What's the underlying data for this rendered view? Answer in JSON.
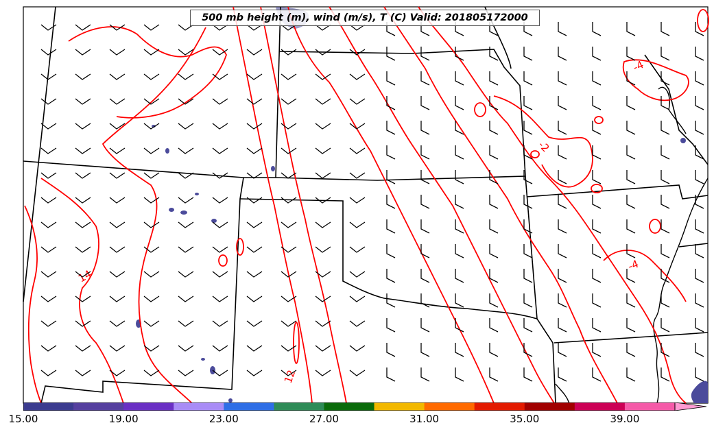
{
  "map": {
    "title": "500 mb height (m), wind (m/s), T (C) Valid: 201805172000",
    "contour_labels": [
      {
        "text": "14"
      },
      {
        "text": "12"
      },
      {
        "text": "-2"
      },
      {
        "text": "-4"
      },
      {
        "text": "-4"
      }
    ],
    "colors": {
      "contour": "#ff0000",
      "borders": "#000000",
      "barbs": "#000000",
      "precip": "#4b4b9b"
    }
  },
  "colorbar": {
    "tick_labels": [
      "15.00",
      "19.00",
      "23.00",
      "27.00",
      "31.00",
      "35.00",
      "39.00"
    ],
    "tick_values": [
      15,
      19,
      23,
      27,
      31,
      35,
      39
    ],
    "min": 15,
    "max": 43,
    "colors": [
      "#3b3b8f",
      "#55409f",
      "#6a2fc4",
      "#a98cf6",
      "#2e6ee6",
      "#2e8b57",
      "#0a6b0a",
      "#f2b800",
      "#ff6a00",
      "#e31a00",
      "#a10000",
      "#cc0055",
      "#f55aa8",
      "#ff9ad2"
    ]
  }
}
